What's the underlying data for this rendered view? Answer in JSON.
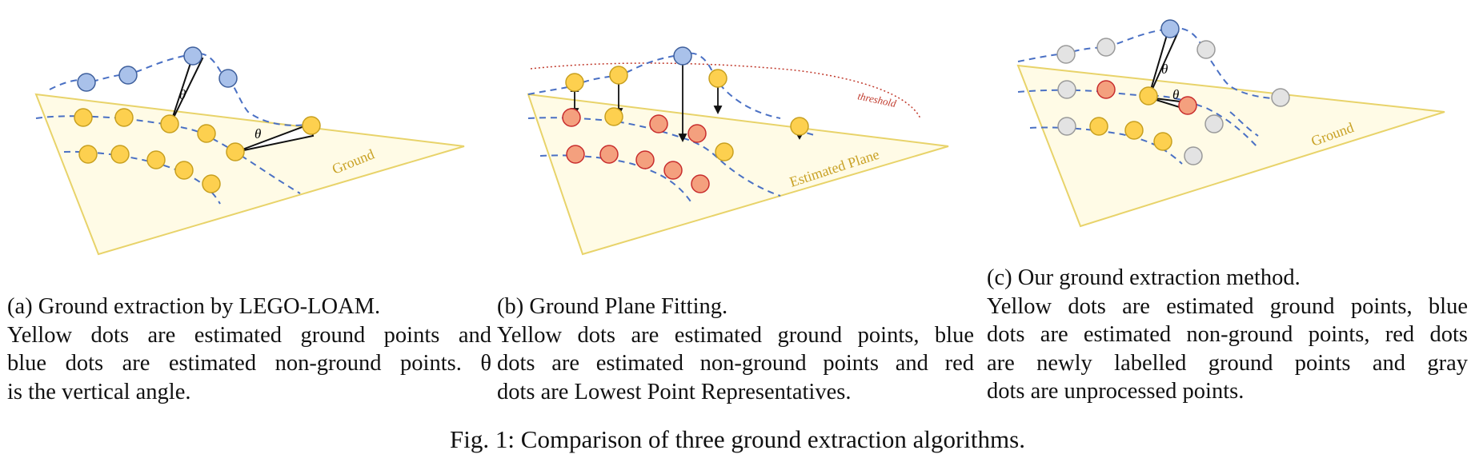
{
  "panels": {
    "a": {
      "label_ground": "Ground",
      "theta": "θ",
      "caption_lines": [
        "(a) Ground extraction by LEGO-LOAM.",
        "Yellow dots are estimated ground points and",
        "blue dots are estimated non-ground points. θ",
        "is the vertical angle."
      ]
    },
    "b": {
      "label_plane": "Estimated Plane",
      "label_threshold": "threshold",
      "caption_lines": [
        "(b) Ground Plane Fitting.",
        "Yellow dots are estimated ground points, blue",
        "dots are estimated non-ground points and red",
        "dots are Lowest Point Representatives."
      ]
    },
    "c": {
      "label_ground": "Ground",
      "theta": "θ",
      "caption_lines": [
        "(c) Our ground extraction method.",
        "Yellow dots are estimated ground points, blue",
        "dots are estimated non-ground points, red dots",
        "are newly labelled ground points and gray",
        "dots are unprocessed points."
      ]
    }
  },
  "figure_caption": "Fig. 1: Comparison of three ground extraction algorithms.",
  "colors": {
    "ground_fill": "#fffbe6",
    "ground_edge": "#e8d36a",
    "ground_label": "#c9a227",
    "yellow_dot": "#fdd04f",
    "yellow_stroke": "#c8a020",
    "blue_dot": "#a9c1ea",
    "blue_stroke": "#3e5f9c",
    "red_dot": "#f4a07e",
    "red_stroke": "#c82d2d",
    "gray_dot": "#e3e3e3",
    "gray_stroke": "#9a9a9a",
    "dash_line": "#4a70c4",
    "threshold": "#c0392b"
  }
}
